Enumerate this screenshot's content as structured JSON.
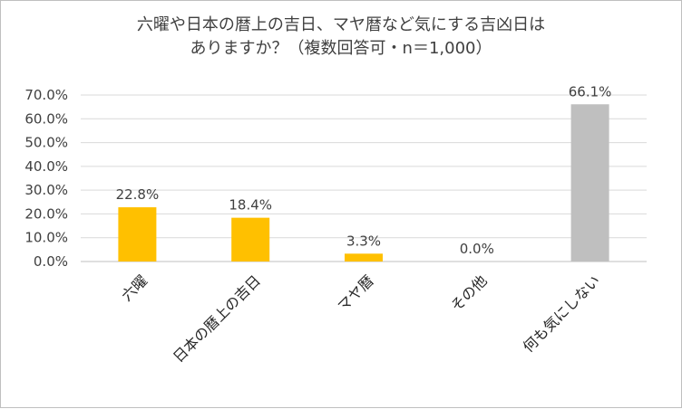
{
  "chart_data": {
    "type": "bar",
    "title_lines": [
      "六曜や日本の暦上の吉日、マヤ暦など気にする吉凶日は",
      "ありますか？（複数回答可・n＝1,000）"
    ],
    "categories": [
      "六曜",
      "日本の暦上の吉日",
      "マヤ暦",
      "その他",
      "何も気にしない"
    ],
    "values": [
      22.8,
      18.4,
      3.3,
      0.0,
      66.1
    ],
    "data_labels": [
      "22.8%",
      "18.4%",
      "3.3%",
      "0.0%",
      "66.1%"
    ],
    "bar_colors": [
      "#ffc000",
      "#ffc000",
      "#ffc000",
      "#ffc000",
      "#bfbfbf"
    ],
    "yticks": [
      0,
      10,
      20,
      30,
      40,
      50,
      60,
      70
    ],
    "ytick_labels": [
      "0.0%",
      "10.0%",
      "20.0%",
      "30.0%",
      "40.0%",
      "50.0%",
      "60.0%",
      "70.0%"
    ],
    "ylim": [
      0,
      70
    ],
    "grid": true,
    "legend": "none",
    "colors": {
      "grid": "#d9d9d9",
      "axis": "#bfbfbf",
      "text": "#404040"
    }
  }
}
